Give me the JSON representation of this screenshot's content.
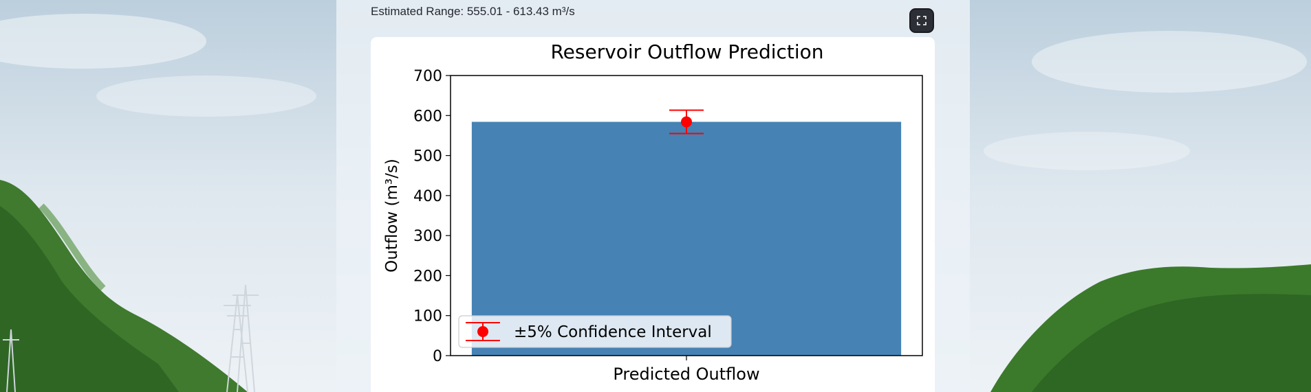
{
  "caption": {
    "text": "Estimated Range: 555.01 - 613.43 m³/s"
  },
  "toolbar": {
    "fullscreen_icon": "fullscreen-expand-icon"
  },
  "colors": {
    "bar": "#4682b4",
    "error": "#ff0000",
    "button": "#2d2f36"
  },
  "chart_data": {
    "type": "bar",
    "title": "Reservoir Outflow Prediction",
    "categories": [
      "Predicted Outflow"
    ],
    "values": [
      584.22
    ],
    "error": {
      "center": 584.22,
      "lower": 555.01,
      "upper": 613.43,
      "label": "±5% Confidence Interval"
    },
    "xlabel": "",
    "ylabel": "Outflow (m³/s)",
    "ylim": [
      0,
      700
    ],
    "yticks": [
      0,
      100,
      200,
      300,
      400,
      500,
      600,
      700
    ],
    "legend_position": "lower-left",
    "grid": false
  }
}
